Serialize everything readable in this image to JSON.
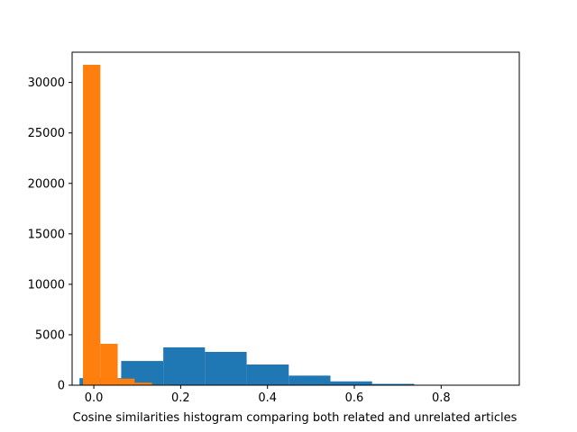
{
  "chart_data": {
    "type": "histogram",
    "title": "",
    "xlabel": "Cosine similarities histogram comparing both related and unrelated articles",
    "ylabel": "",
    "xlim": [
      -0.05,
      0.98
    ],
    "ylim": [
      0,
      33000
    ],
    "grid": false,
    "legend": "none",
    "x_ticks": [
      0.0,
      0.2,
      0.4,
      0.6,
      0.8
    ],
    "x_tick_labels": [
      "0.0",
      "0.2",
      "0.4",
      "0.6",
      "0.8"
    ],
    "y_ticks": [
      0,
      5000,
      10000,
      15000,
      20000,
      25000,
      30000
    ],
    "y_tick_labels": [
      "0",
      "5000",
      "10000",
      "15000",
      "20000",
      "25000",
      "30000"
    ],
    "series": [
      {
        "color": "#1f77b4",
        "bins": [
          {
            "x0": -0.033,
            "x1": 0.063,
            "count": 700
          },
          {
            "x0": 0.063,
            "x1": 0.16,
            "count": 2400
          },
          {
            "x0": 0.16,
            "x1": 0.256,
            "count": 3750
          },
          {
            "x0": 0.256,
            "x1": 0.352,
            "count": 3300
          },
          {
            "x0": 0.352,
            "x1": 0.449,
            "count": 2050
          },
          {
            "x0": 0.449,
            "x1": 0.545,
            "count": 950
          },
          {
            "x0": 0.545,
            "x1": 0.641,
            "count": 380
          },
          {
            "x0": 0.641,
            "x1": 0.738,
            "count": 130
          },
          {
            "x0": 0.738,
            "x1": 0.834,
            "count": 30
          },
          {
            "x0": 0.834,
            "x1": 0.93,
            "count": 8
          }
        ]
      },
      {
        "color": "#ff7f0e",
        "bins": [
          {
            "x0": -0.025,
            "x1": 0.015,
            "count": 31750
          },
          {
            "x0": 0.015,
            "x1": 0.055,
            "count": 4100
          },
          {
            "x0": 0.055,
            "x1": 0.094,
            "count": 650
          },
          {
            "x0": 0.094,
            "x1": 0.134,
            "count": 250
          },
          {
            "x0": 0.134,
            "x1": 0.174,
            "count": 60
          },
          {
            "x0": 0.174,
            "x1": 0.214,
            "count": 20
          },
          {
            "x0": 0.214,
            "x1": 0.253,
            "count": 8
          },
          {
            "x0": 0.253,
            "x1": 0.293,
            "count": 4
          },
          {
            "x0": 0.293,
            "x1": 0.333,
            "count": 2
          },
          {
            "x0": 0.333,
            "x1": 0.373,
            "count": 1
          }
        ]
      }
    ]
  }
}
